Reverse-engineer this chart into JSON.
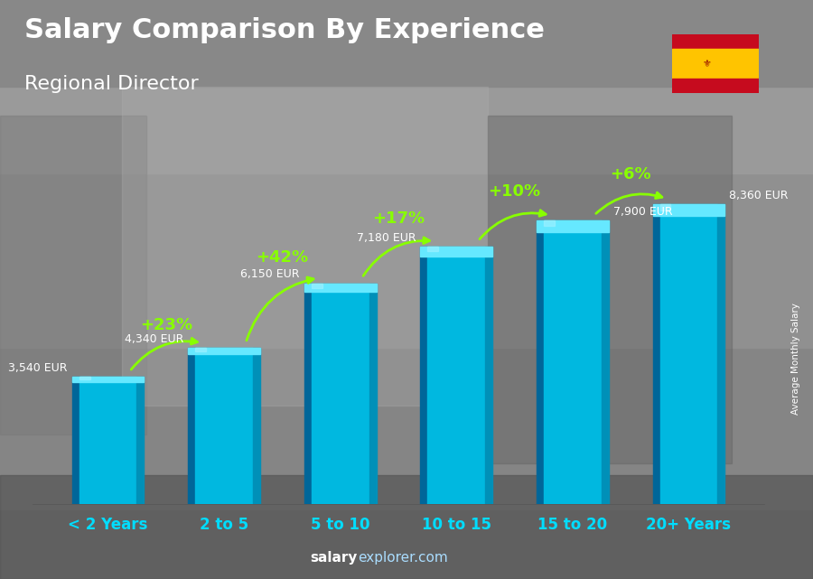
{
  "title": "Salary Comparison By Experience",
  "subtitle": "Regional Director",
  "categories": [
    "< 2 Years",
    "2 to 5",
    "5 to 10",
    "10 to 15",
    "15 to 20",
    "20+ Years"
  ],
  "values": [
    3540,
    4340,
    6150,
    7180,
    7900,
    8360
  ],
  "labels": [
    "3,540 EUR",
    "4,340 EUR",
    "6,150 EUR",
    "7,180 EUR",
    "7,900 EUR",
    "8,360 EUR"
  ],
  "pct_changes": [
    "+23%",
    "+42%",
    "+17%",
    "+10%",
    "+6%"
  ],
  "bar_color_main": "#00b8e0",
  "bar_color_left": "#0077aa",
  "bar_color_right": "#009ec7",
  "bar_color_top": "#55ddff",
  "bg_color": "#888888",
  "title_color": "#ffffff",
  "subtitle_color": "#ffffff",
  "label_color": "#ffffff",
  "cat_label_color": "#00ddff",
  "pct_color": "#88ff00",
  "watermark_salary_color": "#ffffff",
  "watermark_explorer_color": "#aaddff",
  "side_label": "Average Monthly Salary",
  "ylim": [
    0,
    10500
  ],
  "bar_width": 0.62,
  "flag_red": "#c60b1e",
  "flag_yellow": "#ffc400",
  "flag_border": "#888888"
}
